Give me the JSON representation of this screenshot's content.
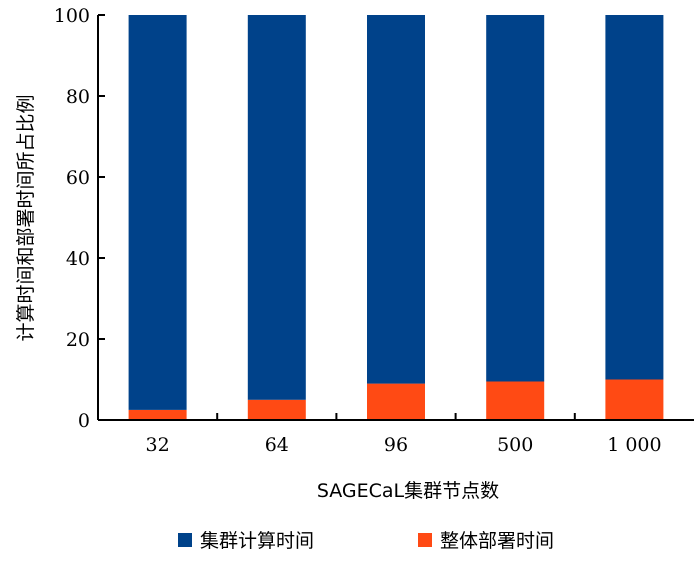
{
  "chart_data": {
    "type": "bar",
    "stacked": true,
    "categories": [
      "32",
      "64",
      "96",
      "500",
      "1 000"
    ],
    "series": [
      {
        "name": "整体部署时间",
        "color": "#ff4a14",
        "values": [
          2.5,
          5,
          9,
          9.5,
          10
        ]
      },
      {
        "name": "集群计算时间",
        "color": "#00428a",
        "values": [
          97.5,
          95,
          91,
          90.5,
          90
        ]
      }
    ],
    "xlabel": "SAGECaL集群节点数",
    "ylabel": "计算时间和部署时间所占比例",
    "ylim": [
      0,
      100
    ],
    "yticks": [
      0,
      20,
      40,
      60,
      80,
      100
    ],
    "grid": false,
    "legend_position": "bottom"
  }
}
